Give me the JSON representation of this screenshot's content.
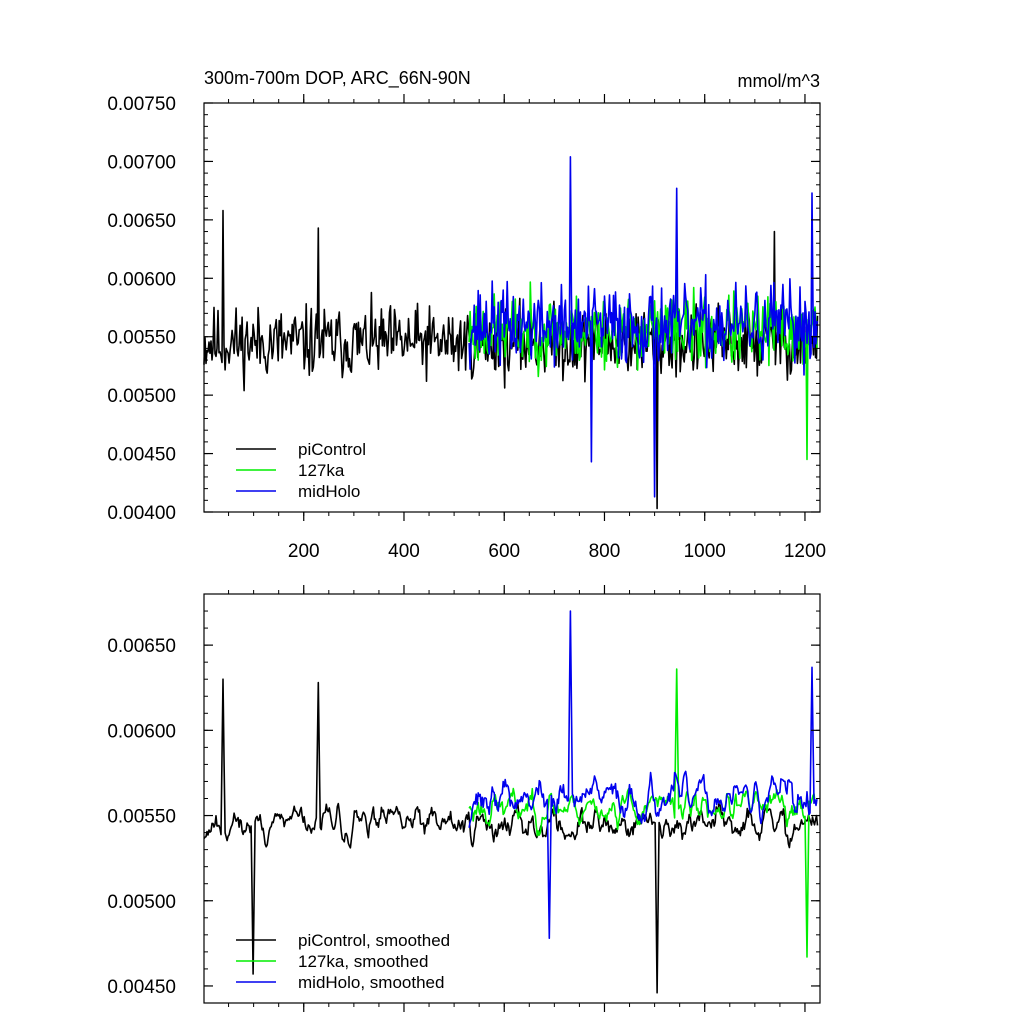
{
  "chart_data": [
    {
      "type": "line",
      "title": "300m-700m DOP, ARC_66N-90N",
      "units": "mmol/m^3",
      "xlabel": "",
      "ylabel": "",
      "xlim": [
        1,
        1230
      ],
      "ylim": [
        0.004,
        0.0075
      ],
      "xticks": [
        200,
        400,
        600,
        800,
        1000,
        1200
      ],
      "xtick_labels": [
        "200",
        "400",
        "600",
        "800",
        "1000",
        "1200"
      ],
      "yticks": [
        0.004,
        0.0045,
        0.005,
        0.0055,
        0.006,
        0.0065,
        0.007,
        0.0075
      ],
      "ytick_labels": [
        "0.00400",
        "0.00450",
        "0.00500",
        "0.00550",
        "0.00600",
        "0.00650",
        "0.00700",
        "0.00750"
      ],
      "legend_position": "bottom-left",
      "series": [
        {
          "name": "piControl",
          "color": "#000000",
          "x_range": [
            1,
            1225
          ],
          "mean": 0.00545,
          "amp": 0.00045,
          "seed": 11,
          "peaks": [
            [
              40,
              0.00658
            ],
            [
              230,
              0.00643
            ],
            [
              905,
              0.00403
            ],
            [
              1140,
              0.0064
            ]
          ]
        },
        {
          "name": "127ka",
          "color": "#00ee00",
          "x_range": [
            530,
            1225
          ],
          "mean": 0.00555,
          "amp": 0.00045,
          "seed": 23,
          "peaks": [
            [
              1205,
              0.00445
            ],
            [
              945,
              0.0064
            ]
          ]
        },
        {
          "name": "midHolo",
          "color": "#0000ee",
          "x_range": [
            530,
            1225
          ],
          "mean": 0.0056,
          "amp": 0.0005,
          "seed": 37,
          "peaks": [
            [
              732,
              0.00704
            ],
            [
              945,
              0.00677
            ],
            [
              1215,
              0.00673
            ],
            [
              900,
              0.00413
            ],
            [
              775,
              0.00443
            ]
          ]
        }
      ]
    },
    {
      "type": "line",
      "title": "",
      "xlabel": "",
      "ylabel": "",
      "xlim": [
        1,
        1230
      ],
      "ylim": [
        0.0044,
        0.0068
      ],
      "xticks": [
        200,
        400,
        600,
        800,
        1000,
        1200
      ],
      "yticks": [
        0.0045,
        0.005,
        0.0055,
        0.006,
        0.0065
      ],
      "ytick_labels": [
        "0.00450",
        "0.00500",
        "0.00550",
        "0.00600",
        "0.00650"
      ],
      "legend_position": "bottom-left",
      "series": [
        {
          "name": "piControl, smoothed",
          "color": "#000000",
          "x_range": [
            1,
            1225
          ],
          "mean": 0.00545,
          "amp": 0.00035,
          "seed": 11,
          "smooth": true,
          "peaks": [
            [
              40,
              0.0063
            ],
            [
              230,
              0.00628
            ],
            [
              905,
              0.00446
            ],
            [
              100,
              0.00457
            ]
          ]
        },
        {
          "name": "127ka, smoothed",
          "color": "#00ee00",
          "x_range": [
            530,
            1225
          ],
          "mean": 0.00555,
          "amp": 0.00035,
          "seed": 23,
          "smooth": true,
          "peaks": [
            [
              945,
              0.00636
            ],
            [
              1205,
              0.00467
            ]
          ]
        },
        {
          "name": "midHolo, smoothed",
          "color": "#0000ee",
          "x_range": [
            530,
            1225
          ],
          "mean": 0.0056,
          "amp": 0.0004,
          "seed": 37,
          "smooth": true,
          "peaks": [
            [
              732,
              0.0067
            ],
            [
              1215,
              0.00637
            ],
            [
              690,
              0.00478
            ]
          ]
        }
      ]
    }
  ]
}
